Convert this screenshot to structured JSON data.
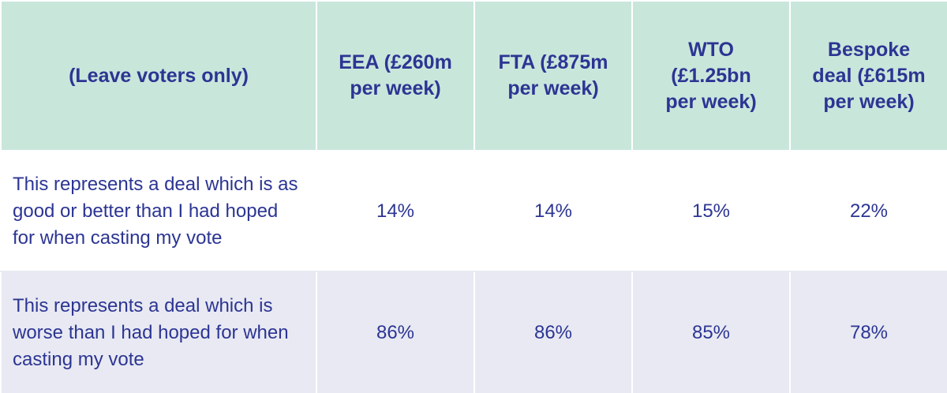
{
  "chart_data": {
    "type": "table",
    "row_header_label": "(Leave voters only)",
    "columns": [
      "EEA (£260m per week)",
      "FTA (£875m per week)",
      "WTO (£1.25bn per week)",
      "Bespoke deal (£615m per week)"
    ],
    "rows": [
      {
        "label": "This represents a deal which is as good or better than I had hoped for when casting my vote",
        "values": [
          "14%",
          "14%",
          "15%",
          "22%"
        ]
      },
      {
        "label": "This represents a deal which is worse than I had hoped for when casting my vote",
        "values": [
          "86%",
          "86%",
          "85%",
          "78%"
        ]
      }
    ]
  },
  "colors": {
    "header_bg": "#c9e6db",
    "text": "#2c3593",
    "alt_row_bg": "#e8e9f2",
    "row_bg": "#ffffff"
  }
}
